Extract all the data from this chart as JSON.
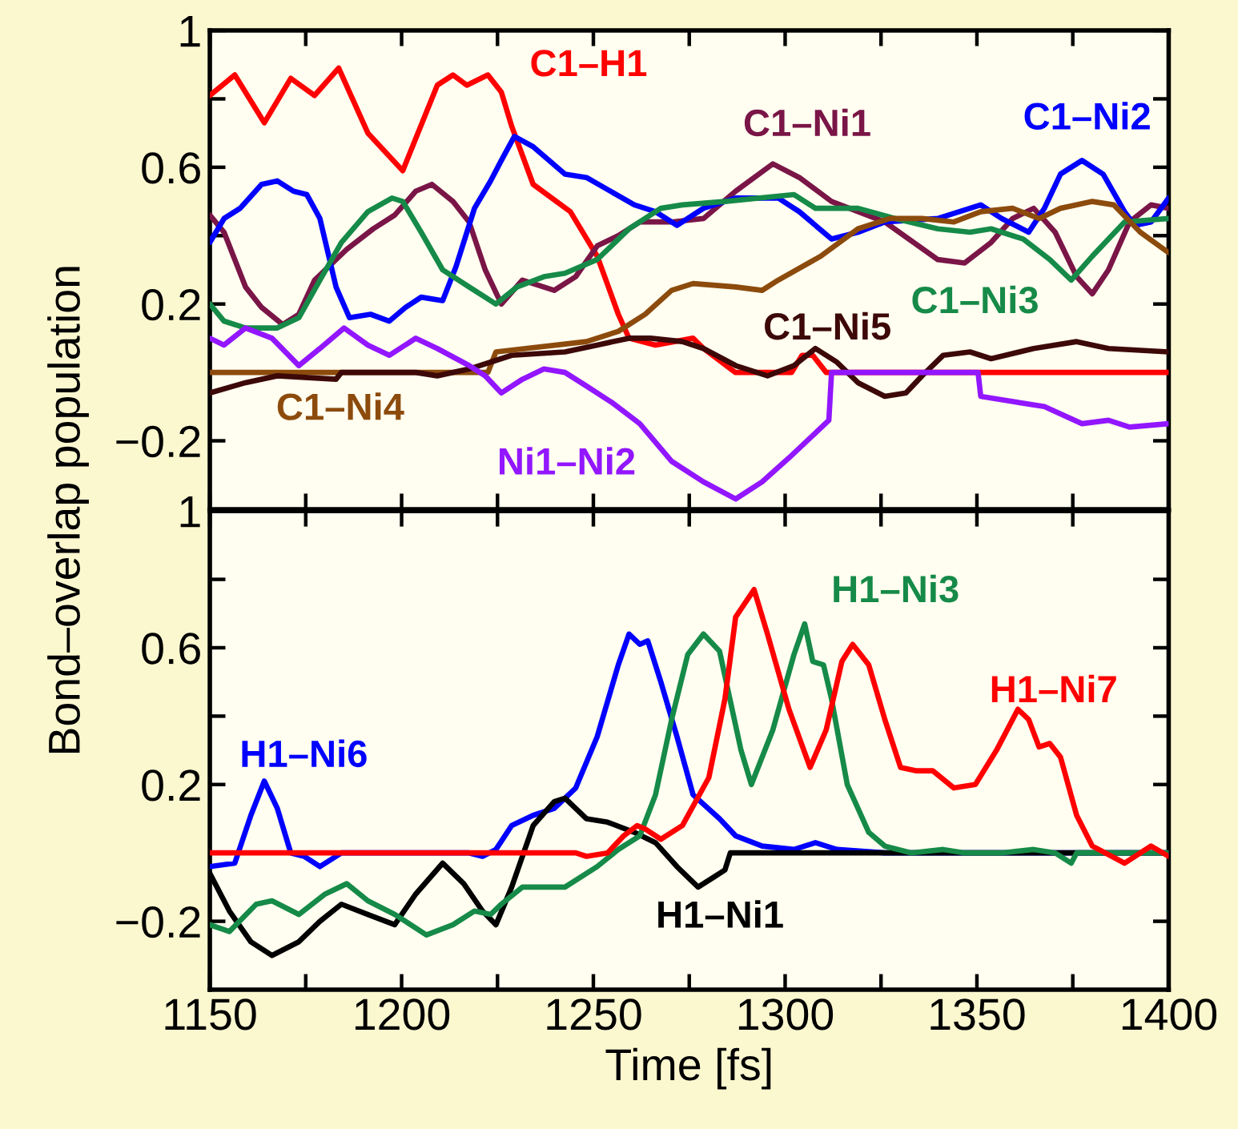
{
  "chart_data": [
    {
      "type": "line",
      "ylabel": "Bond–overlap population",
      "xlim": [
        1150,
        1400
      ],
      "ylim": [
        -0.4,
        1
      ],
      "tick_labels": "y",
      "xticks": [
        {
          "value": 1150,
          "label": null
        },
        {
          "value": 1175,
          "label": null
        },
        {
          "value": 1200,
          "label": null
        },
        {
          "value": 1225,
          "label": null
        },
        {
          "value": 1250,
          "label": null
        },
        {
          "value": 1275,
          "label": null
        },
        {
          "value": 1300,
          "label": null
        },
        {
          "value": 1325,
          "label": null
        },
        {
          "value": 1350,
          "label": null
        },
        {
          "value": 1375,
          "label": null
        },
        {
          "value": 1400,
          "label": null
        }
      ],
      "yticks": [
        1,
        {
          "value": 0.8,
          "label": null
        },
        0.6,
        {
          "value": 0.4,
          "label": null
        },
        0.2,
        {
          "value": 0,
          "label": null
        },
        {
          "value": -0.2,
          "label": "−0.2"
        }
      ],
      "series": [
        {
          "name": "C1–H1",
          "color": "#ff0000",
          "x": [
            1150,
            1156.5,
            1164.2,
            1171.1,
            1177.3,
            1183.6,
            1191.2,
            1200.3,
            1209.3,
            1213.4,
            1217,
            1222.5,
            1226,
            1228.7,
            1234.3,
            1244,
            1251,
            1256.5,
            1259.3,
            1266.2,
            1276,
            1278.7,
            1287,
            1301.7,
            1304.4,
            1307.2,
            1310.7,
            1400
          ],
          "values": [
            0.81,
            0.87,
            0.73,
            0.86,
            0.81,
            0.89,
            0.7,
            0.59,
            0.84,
            0.87,
            0.84,
            0.87,
            0.82,
            0.72,
            0.55,
            0.47,
            0.34,
            0.17,
            0.1,
            0.08,
            0.1,
            0.07,
            0,
            0,
            0.05,
            0.05,
            0,
            0
          ]
        },
        {
          "name": "C1–Ni1",
          "color": "#7a1547",
          "x": [
            1150,
            1153.7,
            1159.3,
            1163.5,
            1169,
            1173.2,
            1177.3,
            1185.7,
            1192.6,
            1198.2,
            1203.7,
            1207.9,
            1213.4,
            1217.6,
            1221.8,
            1226,
            1231.5,
            1239.8,
            1245.4,
            1251,
            1256.5,
            1262.1,
            1270.4,
            1278.7,
            1287.1,
            1296.8,
            1303.7,
            1312.1,
            1326,
            1339.8,
            1346.8,
            1353.7,
            1359.3,
            1364.8,
            1370.4,
            1376,
            1380.1,
            1384.3,
            1389.8,
            1395.4,
            1400
          ],
          "values": [
            0.46,
            0.41,
            0.25,
            0.19,
            0.14,
            0.17,
            0.27,
            0.36,
            0.42,
            0.46,
            0.53,
            0.55,
            0.5,
            0.44,
            0.3,
            0.2,
            0.27,
            0.24,
            0.28,
            0.37,
            0.4,
            0.44,
            0.44,
            0.45,
            0.53,
            0.61,
            0.57,
            0.5,
            0.44,
            0.33,
            0.32,
            0.38,
            0.45,
            0.48,
            0.41,
            0.28,
            0.23,
            0.3,
            0.44,
            0.49,
            0.48
          ]
        },
        {
          "name": "C1–Ni2",
          "color": "#0000ff",
          "x": [
            1150,
            1153.7,
            1157.9,
            1163.5,
            1167.6,
            1171.8,
            1175.3,
            1178.7,
            1182.9,
            1186.4,
            1191.9,
            1196.8,
            1201,
            1205.1,
            1210.7,
            1214.2,
            1219,
            1223.2,
            1226,
            1229.4,
            1234.3,
            1242.6,
            1248.2,
            1260.7,
            1266.2,
            1271.8,
            1278.7,
            1287.1,
            1298.2,
            1303.7,
            1312.1,
            1319,
            1326,
            1339.8,
            1351,
            1356.5,
            1363.5,
            1367.6,
            1371.8,
            1377.4,
            1382.9,
            1388.5,
            1391.2,
            1395.4,
            1400
          ],
          "values": [
            0.38,
            0.45,
            0.48,
            0.55,
            0.56,
            0.53,
            0.52,
            0.45,
            0.25,
            0.16,
            0.17,
            0.15,
            0.19,
            0.22,
            0.21,
            0.31,
            0.48,
            0.56,
            0.62,
            0.69,
            0.66,
            0.58,
            0.57,
            0.49,
            0.47,
            0.43,
            0.48,
            0.51,
            0.51,
            0.47,
            0.39,
            0.41,
            0.44,
            0.45,
            0.49,
            0.45,
            0.41,
            0.48,
            0.58,
            0.62,
            0.58,
            0.47,
            0.43,
            0.44,
            0.51
          ]
        },
        {
          "name": "C1–Ni3",
          "color": "#168a48",
          "x": [
            1150,
            1153.7,
            1159.3,
            1167.6,
            1173.2,
            1178.7,
            1184.3,
            1191.2,
            1197.5,
            1200.3,
            1205.1,
            1210.7,
            1217.6,
            1224.6,
            1230.1,
            1237.1,
            1242.6,
            1251,
            1259.3,
            1267.6,
            1273.2,
            1284.3,
            1302.3,
            1307.9,
            1319,
            1328.7,
            1339.8,
            1348.2,
            1353.7,
            1362.1,
            1369,
            1374.6,
            1380.1,
            1388.5,
            1400
          ],
          "values": [
            0.2,
            0.15,
            0.13,
            0.13,
            0.16,
            0.27,
            0.38,
            0.47,
            0.51,
            0.5,
            0.41,
            0.3,
            0.25,
            0.2,
            0.25,
            0.28,
            0.29,
            0.33,
            0.42,
            0.48,
            0.49,
            0.5,
            0.52,
            0.48,
            0.48,
            0.45,
            0.42,
            0.41,
            0.42,
            0.39,
            0.33,
            0.27,
            0.34,
            0.44,
            0.45
          ]
        },
        {
          "name": "C1–Ni4",
          "color": "#8c4b0c",
          "x": [
            1150,
            1222.5,
            1224.6,
            1248.2,
            1256.5,
            1263.5,
            1270.4,
            1276,
            1287.1,
            1294,
            1298.2,
            1309.3,
            1319,
            1327.3,
            1335.7,
            1344,
            1351,
            1359.3,
            1366.2,
            1371.8,
            1380.1,
            1385.7,
            1392.6,
            1400
          ],
          "values": [
            0,
            0,
            0.06,
            0.09,
            0.12,
            0.17,
            0.24,
            0.26,
            0.25,
            0.24,
            0.27,
            0.34,
            0.42,
            0.45,
            0.45,
            0.44,
            0.47,
            0.48,
            0.45,
            0.48,
            0.5,
            0.49,
            0.41,
            0.35
          ]
        },
        {
          "name": "C1–Ni5",
          "color": "#3d0808",
          "x": [
            1150,
            1159.3,
            1167.6,
            1182.9,
            1184.3,
            1203.7,
            1209.3,
            1217.6,
            1223.2,
            1228.7,
            1242.6,
            1251,
            1259.3,
            1264.9,
            1273.2,
            1278.7,
            1287.1,
            1295.4,
            1302.3,
            1307.9,
            1313.5,
            1319,
            1326,
            1331.5,
            1335.7,
            1341.2,
            1348.2,
            1353.7,
            1364.8,
            1376,
            1384.3,
            1400
          ],
          "values": [
            -0.06,
            -0.03,
            -0.01,
            -0.02,
            0,
            0,
            -0.01,
            0.01,
            0.03,
            0.05,
            0.06,
            0.08,
            0.1,
            0.1,
            0.09,
            0.07,
            0.02,
            -0.01,
            0.02,
            0.07,
            0.03,
            -0.03,
            -0.07,
            -0.06,
            -0.01,
            0.05,
            0.06,
            0.04,
            0.07,
            0.09,
            0.07,
            0.06
          ]
        },
        {
          "name": "Ni1–Ni2",
          "color": "#9216ff",
          "x": [
            1150,
            1153.7,
            1159.3,
            1166.2,
            1173.2,
            1178.7,
            1185,
            1191.2,
            1196.8,
            1203.7,
            1209.3,
            1217.6,
            1221.8,
            1226,
            1231.5,
            1237.1,
            1242.6,
            1248.2,
            1255.1,
            1262.1,
            1270.4,
            1278.7,
            1287.1,
            1294,
            1301,
            1311.4,
            1312.1,
            1350.3,
            1351,
            1356.5,
            1367.6,
            1377.4,
            1384.3,
            1389.8,
            1400
          ],
          "values": [
            0.1,
            0.08,
            0.13,
            0.1,
            0.02,
            0.07,
            0.13,
            0.08,
            0.05,
            0.1,
            0.07,
            0.02,
            -0.01,
            -0.06,
            -0.02,
            0.01,
            0,
            -0.04,
            -0.09,
            -0.15,
            -0.26,
            -0.32,
            -0.37,
            -0.32,
            -0.25,
            -0.14,
            0,
            0,
            -0.07,
            -0.08,
            -0.1,
            -0.15,
            -0.14,
            -0.16,
            -0.15
          ]
        }
      ]
    },
    {
      "type": "line",
      "xlabel": "Time [fs]",
      "xlim": [
        1150,
        1400
      ],
      "ylim": [
        -0.4,
        1
      ],
      "xticks": [
        1150,
        {
          "value": 1175,
          "label": null
        },
        1200,
        {
          "value": 1225,
          "label": null
        },
        1250,
        {
          "value": 1275,
          "label": null
        },
        1300,
        {
          "value": 1325,
          "label": null
        },
        1350,
        {
          "value": 1375,
          "label": null
        },
        1400
      ],
      "yticks": [
        1,
        {
          "value": 0.8,
          "label": null
        },
        0.6,
        {
          "value": 0.4,
          "label": null
        },
        0.2,
        {
          "value": 0,
          "label": null
        },
        {
          "value": -0.2,
          "label": "−0.2"
        }
      ],
      "series": [
        {
          "name": "H1–Ni6",
          "color": "#0000ff",
          "x": [
            1150,
            1156.5,
            1160.7,
            1164.2,
            1167.6,
            1171.1,
            1174.6,
            1178.7,
            1184.3,
            1217.6,
            1221.1,
            1224.6,
            1228.7,
            1234.3,
            1239.8,
            1245.4,
            1251,
            1256.5,
            1259.3,
            1262.1,
            1264.2,
            1267.6,
            1271.8,
            1276,
            1282.9,
            1287.1,
            1294,
            1302.3,
            1307.9,
            1313.5,
            1326,
            1400
          ],
          "values": [
            -0.04,
            -0.03,
            0.11,
            0.21,
            0.13,
            0,
            -0.01,
            -0.04,
            0,
            0,
            -0.01,
            0.01,
            0.08,
            0.11,
            0.13,
            0.19,
            0.34,
            0.55,
            0.64,
            0.61,
            0.62,
            0.5,
            0.34,
            0.17,
            0.1,
            0.05,
            0.02,
            0.01,
            0.03,
            0.01,
            0,
            0
          ]
        },
        {
          "name": "H1–Ni1",
          "color": "#000000",
          "x": [
            1150,
            1155.1,
            1160.7,
            1166.2,
            1173.2,
            1178.7,
            1184.3,
            1191.2,
            1198.2,
            1203.7,
            1210.7,
            1216.2,
            1221.1,
            1224.6,
            1228.7,
            1234.3,
            1239.8,
            1242.6,
            1248.2,
            1253.7,
            1260.7,
            1266.2,
            1271.8,
            1277.3,
            1281.5,
            1284.3,
            1285.7,
            1400
          ],
          "values": [
            -0.06,
            -0.17,
            -0.26,
            -0.3,
            -0.26,
            -0.2,
            -0.15,
            -0.18,
            -0.21,
            -0.12,
            -0.03,
            -0.09,
            -0.17,
            -0.21,
            -0.1,
            0.08,
            0.15,
            0.16,
            0.1,
            0.09,
            0.06,
            0.03,
            -0.04,
            -0.1,
            -0.07,
            -0.05,
            0,
            0
          ]
        },
        {
          "name": "H1–Ni3",
          "color": "#168a48",
          "x": [
            1150,
            1155.1,
            1162.1,
            1166.2,
            1173.2,
            1180.1,
            1185.7,
            1191.2,
            1198.2,
            1206.5,
            1213.4,
            1219,
            1223.2,
            1226,
            1231.5,
            1242.6,
            1251,
            1256.5,
            1262.1,
            1266.2,
            1270.4,
            1274.6,
            1278.7,
            1282.9,
            1288.5,
            1291.2,
            1296.8,
            1302.3,
            1305.1,
            1307.2,
            1310,
            1312.1,
            1316.2,
            1321.8,
            1326,
            1332.9,
            1341.2,
            1346.8,
            1356.5,
            1364.8,
            1370.4,
            1374.6,
            1376,
            1400
          ],
          "values": [
            -0.21,
            -0.23,
            -0.15,
            -0.14,
            -0.18,
            -0.12,
            -0.09,
            -0.14,
            -0.18,
            -0.24,
            -0.21,
            -0.17,
            -0.18,
            -0.15,
            -0.1,
            -0.1,
            -0.04,
            0.01,
            0.05,
            0.17,
            0.39,
            0.58,
            0.64,
            0.59,
            0.3,
            0.2,
            0.36,
            0.58,
            0.67,
            0.56,
            0.55,
            0.45,
            0.2,
            0.06,
            0.02,
            0,
            0.01,
            0,
            0,
            0.01,
            0,
            -0.03,
            0,
            0
          ]
        },
        {
          "name": "H1–Ni7",
          "color": "#ff0000",
          "x": [
            1150,
            1245.4,
            1248.2,
            1253.7,
            1257.9,
            1261.4,
            1263.5,
            1267.6,
            1273.2,
            1280.1,
            1284.3,
            1287.1,
            1291.9,
            1295.4,
            1301,
            1306.5,
            1310.7,
            1314.8,
            1317.6,
            1321.8,
            1326,
            1330.1,
            1334.3,
            1338.5,
            1344,
            1349.6,
            1355.1,
            1360.7,
            1363.5,
            1366.2,
            1369,
            1371.8,
            1376,
            1380.1,
            1388.5,
            1392.6,
            1395.4,
            1400
          ],
          "values": [
            0,
            0,
            -0.01,
            0,
            0.05,
            0.08,
            0.07,
            0.04,
            0.08,
            0.22,
            0.45,
            0.69,
            0.77,
            0.64,
            0.42,
            0.25,
            0.36,
            0.56,
            0.61,
            0.55,
            0.39,
            0.25,
            0.24,
            0.24,
            0.19,
            0.2,
            0.3,
            0.42,
            0.39,
            0.31,
            0.32,
            0.28,
            0.11,
            0.02,
            -0.03,
            0,
            0.02,
            -0.01
          ]
        }
      ]
    }
  ]
}
